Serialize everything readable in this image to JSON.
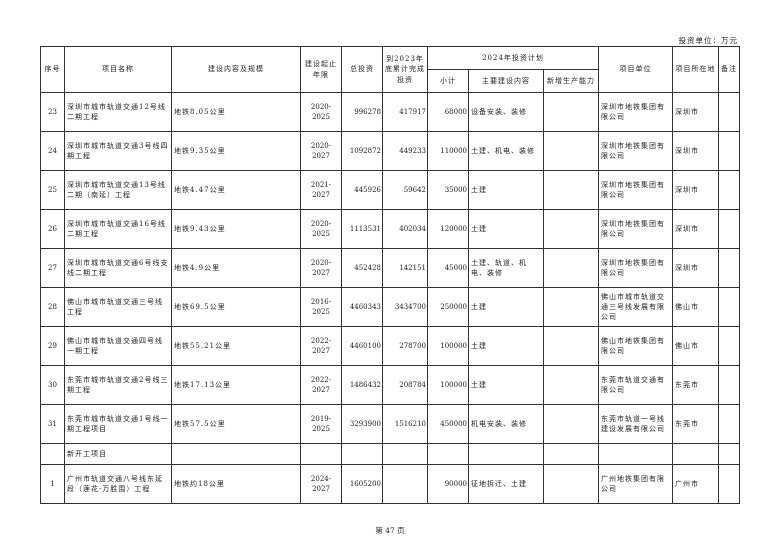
{
  "unit_note": "投资单位：万元",
  "headers": {
    "seq": "序号",
    "name": "项目名称",
    "content": "建设内容及规模",
    "period": "建设起止年限",
    "total": "总投资",
    "completed": "到2023年底累计完成投资",
    "plan2024": "2024年投资计划",
    "subtotal": "小计",
    "main_content": "主要建设内容",
    "new_capacity": "新增生产能力",
    "unit": "项目单位",
    "location": "项目所在地",
    "remark": "备注"
  },
  "rows": [
    {
      "seq": "23",
      "name": "深圳市城市轨道交通12号线二期工程",
      "content": "地铁8.05公里",
      "period": "2020-2025",
      "total": "996278",
      "completed": "417917",
      "subtotal": "68000",
      "main": "设备安装、装修",
      "capacity": "",
      "unit": "深圳市地铁集团有限公司",
      "location": "深圳市",
      "remark": ""
    },
    {
      "seq": "24",
      "name": "深圳市城市轨道交通3号线四期工程",
      "content": "地铁9.35公里",
      "period": "2020-2027",
      "total": "1092872",
      "completed": "449233",
      "subtotal": "110000",
      "main": "土建、机电、装修",
      "capacity": "",
      "unit": "深圳市地铁集团有限公司",
      "location": "深圳市",
      "remark": ""
    },
    {
      "seq": "25",
      "name": "深圳市城市轨道交通13号线二期（南延）工程",
      "content": "地铁4.47公里",
      "period": "2021-2027",
      "total": "445926",
      "completed": "59642",
      "subtotal": "35000",
      "main": "土建",
      "capacity": "",
      "unit": "深圳市地铁集团有限公司",
      "location": "深圳市",
      "remark": ""
    },
    {
      "seq": "26",
      "name": "深圳市城市轨道交通16号线二期工程",
      "content": "地铁9.43公里",
      "period": "2020-2025",
      "total": "1113531",
      "completed": "402034",
      "subtotal": "120000",
      "main": "土建",
      "capacity": "",
      "unit": "深圳市地铁集团有限公司",
      "location": "深圳市",
      "remark": ""
    },
    {
      "seq": "27",
      "name": "深圳市城市轨道交通6号线支线二期工程",
      "content": "地铁4.9公里",
      "period": "2020-2027",
      "total": "452428",
      "completed": "142151",
      "subtotal": "45000",
      "main": "土建、轨道、机电、装修",
      "capacity": "",
      "unit": "深圳市地铁集团有限公司",
      "location": "深圳市",
      "remark": ""
    },
    {
      "seq": "28",
      "name": "佛山市城市轨道交通三号线工程",
      "content": "地铁69.5公里",
      "period": "2016-2025",
      "total": "4460343",
      "completed": "3434700",
      "subtotal": "250000",
      "main": "土建",
      "capacity": "",
      "unit": "佛山市城市轨道交通三号线发展有限公司",
      "location": "佛山市",
      "remark": ""
    },
    {
      "seq": "29",
      "name": "佛山市城市轨道交通四号线一期工程",
      "content": "地铁55.21公里",
      "period": "2022-2027",
      "total": "4460100",
      "completed": "278700",
      "subtotal": "100000",
      "main": "土建",
      "capacity": "",
      "unit": "佛山市地铁集团有限公司",
      "location": "佛山市",
      "remark": ""
    },
    {
      "seq": "30",
      "name": "东莞市城市轨道交通2号线三期工程",
      "content": "地铁17.13公里",
      "period": "2022-2027",
      "total": "1486432",
      "completed": "208784",
      "subtotal": "100000",
      "main": "土建",
      "capacity": "",
      "unit": "东莞市轨道交通有限公司",
      "location": "东莞市",
      "remark": ""
    },
    {
      "seq": "31",
      "name": "东莞市城市轨道交通1号线一期工程项目",
      "content": "地铁57.5公里",
      "period": "2019-2025",
      "total": "3293900",
      "completed": "1516210",
      "subtotal": "450000",
      "main": "机电安装、装修",
      "capacity": "",
      "unit": "东莞市轨道一号线建设发展有限公司",
      "location": "东莞市",
      "remark": ""
    }
  ],
  "section": "新开工项目",
  "new_rows": [
    {
      "seq": "1",
      "name": "广州市轨道交通八号线东延段（莲花-万胜围）工程",
      "content": "地铁约18公里",
      "period": "2024-2027",
      "total": "1605200",
      "completed": "",
      "subtotal": "90000",
      "main": "征地拆迁、土建",
      "capacity": "",
      "unit": "广州地铁集团有限公司",
      "location": "广州市",
      "remark": ""
    }
  ],
  "page_label": "第 47 页"
}
